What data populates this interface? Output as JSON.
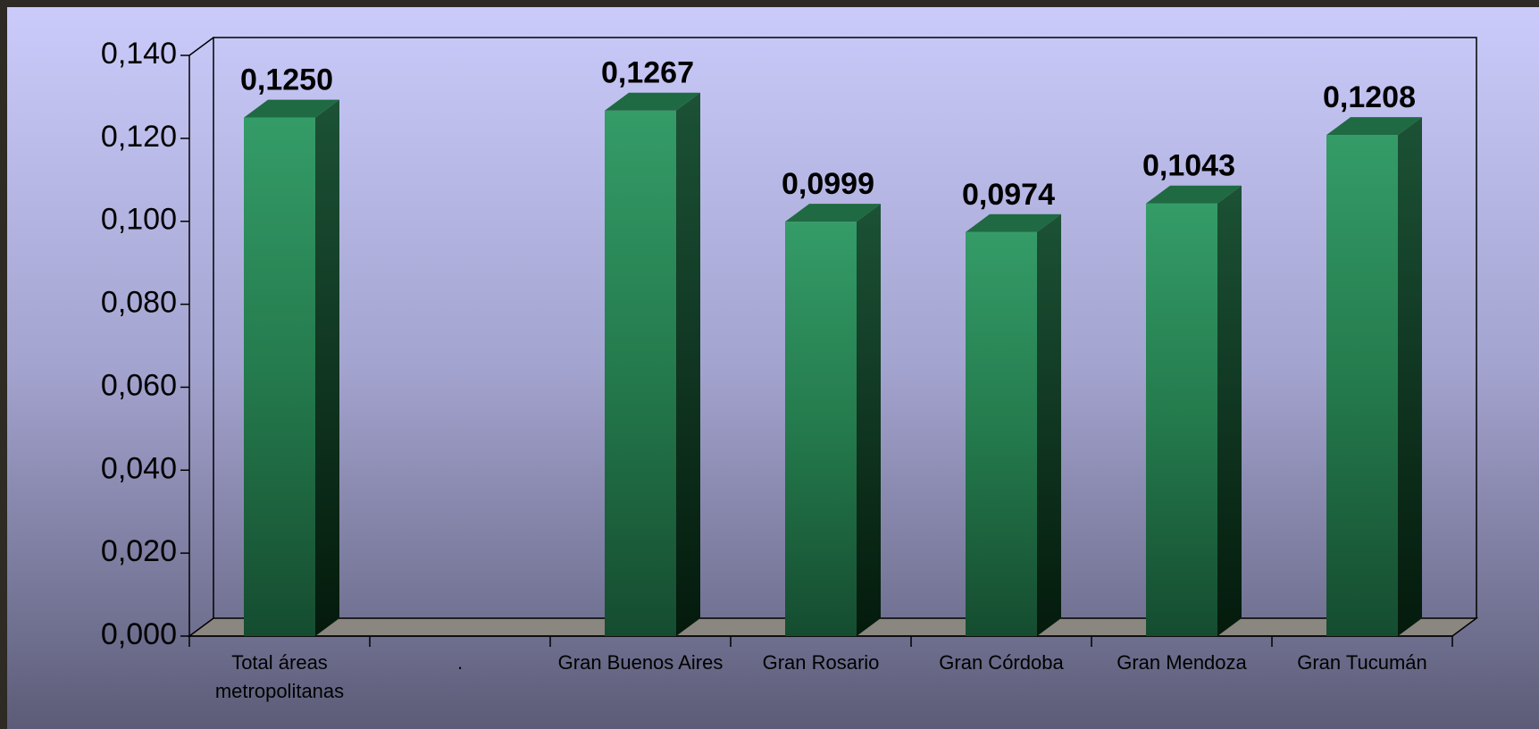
{
  "chart_data": {
    "type": "bar3d",
    "categories": [
      "Total áreas metropolitanas",
      ".",
      "Gran Buenos Aires",
      "Gran Rosario",
      "Gran Córdoba",
      "Gran Mendoza",
      "Gran Tucumán"
    ],
    "values": [
      0.125,
      null,
      0.1267,
      0.0999,
      0.0974,
      0.1043,
      0.1208
    ],
    "value_labels": [
      "0,1250",
      null,
      "0,1267",
      "0,0999",
      "0,0974",
      "0,1043",
      "0,1208"
    ],
    "color": "#2f9463",
    "ylim": [
      0,
      0.14
    ],
    "yticks": [
      {
        "value": 0,
        "label": "0,000"
      },
      {
        "value": 0.02,
        "label": "0,020"
      },
      {
        "value": 0.04,
        "label": "0,040"
      },
      {
        "value": 0.06,
        "label": "0,060"
      },
      {
        "value": 0.08,
        "label": "0,080"
      },
      {
        "value": 0.1,
        "label": "0,100"
      },
      {
        "value": 0.12,
        "label": "0,120"
      },
      {
        "value": 0.14,
        "label": "0,140"
      }
    ]
  }
}
